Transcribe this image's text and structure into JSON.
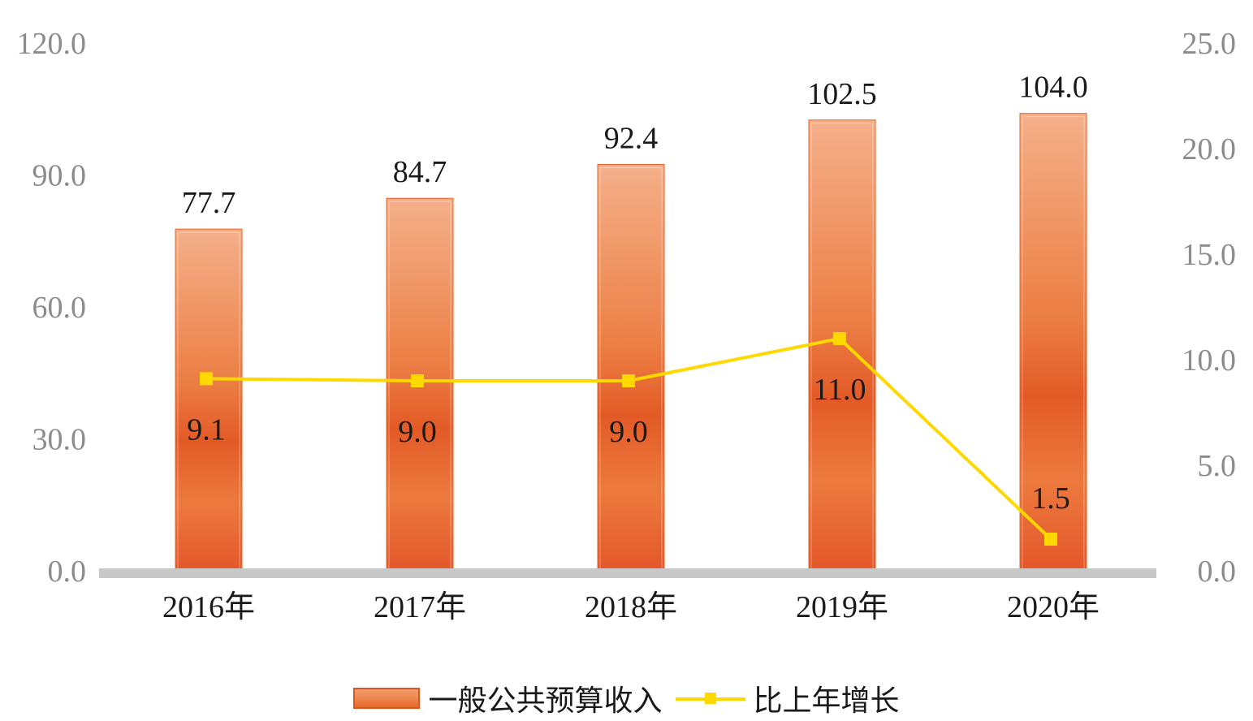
{
  "chart_data": {
    "type": "bar",
    "categories": [
      "2016年",
      "2017年",
      "2018年",
      "2019年",
      "2020年"
    ],
    "series": [
      {
        "name": "一般公共预算收入",
        "type": "bar",
        "axis": "left",
        "values": [
          77.7,
          84.7,
          92.4,
          102.5,
          104.0
        ],
        "labels": [
          "77.7",
          "84.7",
          "92.4",
          "102.5",
          "104.0"
        ],
        "color": "#e8632a"
      },
      {
        "name": "比上年增长",
        "type": "line",
        "axis": "right",
        "values": [
          9.1,
          9.0,
          9.0,
          11.0,
          1.5
        ],
        "labels": [
          "9.1",
          "9.0",
          "9.0",
          "11.0",
          "1.5"
        ],
        "color": "#ffd800"
      }
    ],
    "y_left": {
      "min": 0,
      "max": 120,
      "ticks": [
        "0.0",
        "30.0",
        "60.0",
        "90.0",
        "120.0"
      ]
    },
    "y_right": {
      "min": 0,
      "max": 25,
      "ticks": [
        "0.0",
        "5.0",
        "10.0",
        "15.0",
        "20.0",
        "25.0"
      ]
    },
    "grid": false,
    "legend_position": "bottom"
  }
}
